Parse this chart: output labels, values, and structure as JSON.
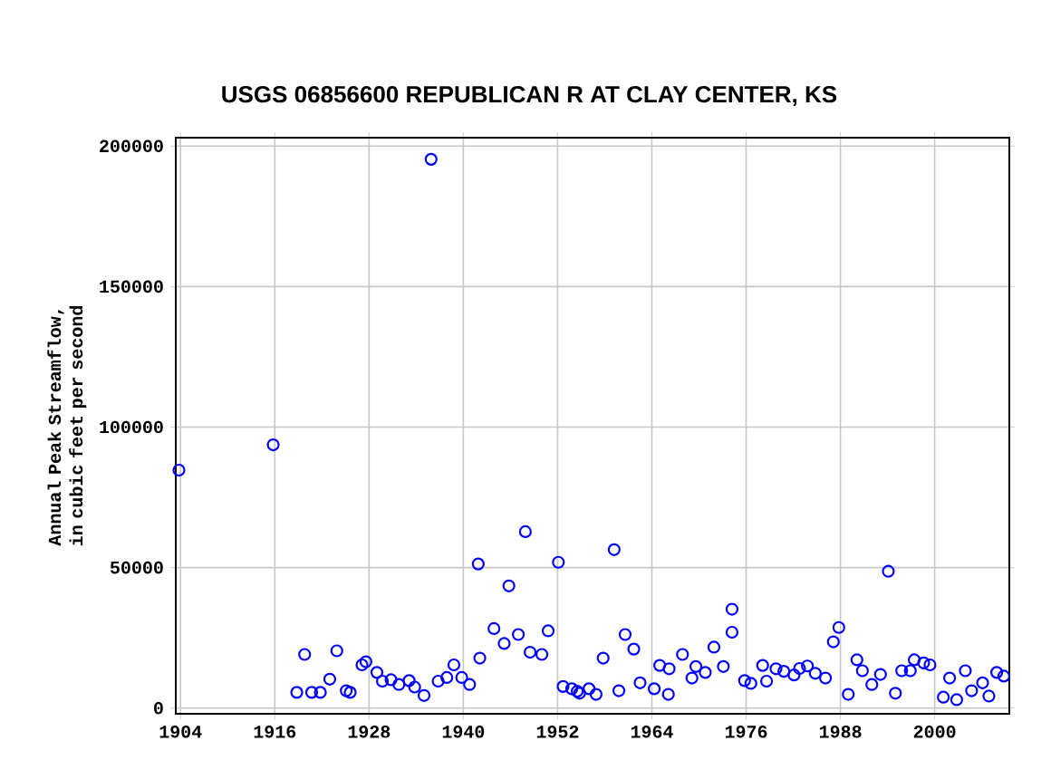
{
  "chart_data": {
    "type": "scatter",
    "title": "USGS 06856600 REPUBLICAN R AT CLAY CENTER, KS",
    "ylabel": "Annual Peak Streamflow, in cubic feet per second",
    "xlim": [
      1903.4,
      2009.5
    ],
    "ylim": [
      -2000,
      203000
    ],
    "xticks": [
      1904,
      1916,
      1928,
      1940,
      1952,
      1964,
      1976,
      1988,
      2000
    ],
    "yticks": [
      0,
      50000,
      100000,
      150000,
      200000
    ],
    "grid": true,
    "marker": "circle",
    "series": [
      {
        "color": "#0000ff",
        "x": [
          1903.8,
          1915.8,
          1918.8,
          1919.8,
          1920.7,
          1921.8,
          1923.0,
          1923.9,
          1925.1,
          1925.6,
          1927.1,
          1927.6,
          1929.0,
          1929.7,
          1930.8,
          1931.8,
          1933.1,
          1933.8,
          1935.0,
          1935.9,
          1936.8,
          1937.9,
          1938.8,
          1939.8,
          1940.8,
          1941.9,
          1942.1,
          1943.9,
          1945.2,
          1945.8,
          1947.0,
          1947.9,
          1948.5,
          1950.0,
          1950.8,
          1952.1,
          1952.7,
          1953.8,
          1954.5,
          1954.8,
          1956.0,
          1956.9,
          1957.8,
          1959.2,
          1959.8,
          1960.6,
          1961.7,
          1962.5,
          1964.3,
          1965.0,
          1966.1,
          1966.2,
          1967.9,
          1969.1,
          1969.6,
          1970.8,
          1971.9,
          1973.1,
          1974.2,
          1974.2,
          1975.8,
          1976.6,
          1978.1,
          1978.6,
          1979.8,
          1980.8,
          1982.1,
          1982.8,
          1983.8,
          1984.8,
          1986.1,
          1987.1,
          1987.8,
          1989.0,
          1990.1,
          1990.8,
          1992.0,
          1993.1,
          1994.1,
          1995.0,
          1995.8,
          1996.9,
          1997.4,
          1998.6,
          1999.4,
          2001.1,
          2001.9,
          2002.8,
          2003.9,
          2004.7,
          2006.1,
          2006.9,
          2007.9,
          2008.8
        ],
        "values": [
          84700,
          93700,
          5600,
          19100,
          5600,
          5600,
          10300,
          20400,
          6200,
          5600,
          15400,
          16500,
          12700,
          9600,
          10100,
          8400,
          9800,
          7500,
          4500,
          195300,
          9600,
          10900,
          15400,
          10900,
          8400,
          51300,
          17800,
          28300,
          23000,
          43500,
          26200,
          62800,
          19900,
          19100,
          27500,
          51900,
          7700,
          6900,
          6000,
          5300,
          6900,
          4900,
          17800,
          56400,
          6200,
          26200,
          21000,
          9000,
          6900,
          15200,
          4900,
          14000,
          19100,
          10700,
          14800,
          12700,
          21700,
          14800,
          35200,
          27000,
          9800,
          8800,
          15200,
          9600,
          14000,
          13100,
          11800,
          14100,
          15000,
          12400,
          10700,
          23600,
          28700,
          4900,
          17200,
          13300,
          8400,
          12000,
          48700,
          5300,
          13300,
          13300,
          17200,
          16100,
          15400,
          3900,
          10700,
          3000,
          13300,
          6200,
          9000,
          4300,
          12700,
          11400
        ]
      }
    ]
  }
}
